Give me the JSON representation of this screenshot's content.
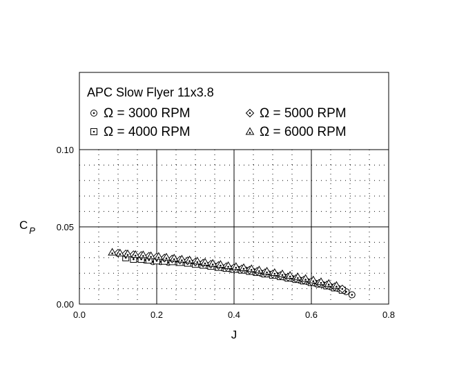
{
  "chart_data": {
    "type": "scatter",
    "title": "APC Slow Flyer 11x3.8",
    "xlabel": "J",
    "ylabel": "C",
    "ylabel_sub": "P",
    "xlim": [
      0.0,
      0.8
    ],
    "ylim": [
      0.0,
      0.125
    ],
    "x_ticks": [
      "0.0",
      "0.2",
      "0.4",
      "0.6",
      "0.8"
    ],
    "y_ticks": [
      "0.00",
      "0.05",
      "0.10"
    ],
    "grid": true,
    "legend_position": "top",
    "series": [
      {
        "name": "Ω = 3000 RPM",
        "marker": "circle-dot",
        "points": [
          [
            0.15,
            0.0295
          ],
          [
            0.17,
            0.0285
          ],
          [
            0.19,
            0.0275
          ],
          [
            0.21,
            0.0275
          ],
          [
            0.23,
            0.027
          ],
          [
            0.25,
            0.0275
          ],
          [
            0.27,
            0.027
          ],
          [
            0.29,
            0.0265
          ],
          [
            0.31,
            0.0258
          ],
          [
            0.33,
            0.025
          ],
          [
            0.35,
            0.0245
          ],
          [
            0.37,
            0.0235
          ],
          [
            0.39,
            0.0228
          ],
          [
            0.41,
            0.0225
          ],
          [
            0.43,
            0.022
          ],
          [
            0.45,
            0.021
          ],
          [
            0.47,
            0.02
          ],
          [
            0.49,
            0.0195
          ],
          [
            0.51,
            0.0185
          ],
          [
            0.53,
            0.0175
          ],
          [
            0.55,
            0.0165
          ],
          [
            0.57,
            0.0155
          ],
          [
            0.59,
            0.0145
          ],
          [
            0.61,
            0.0135
          ],
          [
            0.63,
            0.0125
          ],
          [
            0.65,
            0.0112
          ],
          [
            0.67,
            0.01
          ],
          [
            0.69,
            0.008
          ],
          [
            0.705,
            0.006
          ]
        ]
      },
      {
        "name": "Ω = 4000 RPM",
        "marker": "square-dot",
        "points": [
          [
            0.12,
            0.03
          ],
          [
            0.14,
            0.029
          ],
          [
            0.16,
            0.029
          ],
          [
            0.18,
            0.0285
          ],
          [
            0.2,
            0.028
          ],
          [
            0.22,
            0.0278
          ],
          [
            0.24,
            0.0275
          ],
          [
            0.26,
            0.027
          ],
          [
            0.28,
            0.0265
          ],
          [
            0.3,
            0.0258
          ],
          [
            0.32,
            0.0252
          ],
          [
            0.34,
            0.0245
          ],
          [
            0.36,
            0.0238
          ],
          [
            0.38,
            0.0232
          ],
          [
            0.4,
            0.0225
          ],
          [
            0.42,
            0.022
          ],
          [
            0.44,
            0.0212
          ],
          [
            0.46,
            0.0205
          ],
          [
            0.48,
            0.0195
          ],
          [
            0.5,
            0.0187
          ],
          [
            0.52,
            0.0178
          ],
          [
            0.54,
            0.0168
          ],
          [
            0.56,
            0.016
          ],
          [
            0.58,
            0.015
          ],
          [
            0.6,
            0.014
          ],
          [
            0.62,
            0.013
          ],
          [
            0.64,
            0.0118
          ],
          [
            0.66,
            0.0105
          ],
          [
            0.68,
            0.009
          ]
        ]
      },
      {
        "name": "Ω = 5000 RPM",
        "marker": "diamond-dot",
        "points": [
          [
            0.1,
            0.033
          ],
          [
            0.12,
            0.0325
          ],
          [
            0.14,
            0.032
          ],
          [
            0.16,
            0.0315
          ],
          [
            0.18,
            0.031
          ],
          [
            0.2,
            0.0305
          ],
          [
            0.22,
            0.0298
          ],
          [
            0.24,
            0.0292
          ],
          [
            0.26,
            0.0285
          ],
          [
            0.28,
            0.028
          ],
          [
            0.3,
            0.0272
          ],
          [
            0.32,
            0.0265
          ],
          [
            0.34,
            0.0258
          ],
          [
            0.36,
            0.025
          ],
          [
            0.38,
            0.0242
          ],
          [
            0.4,
            0.0235
          ],
          [
            0.42,
            0.0228
          ],
          [
            0.44,
            0.022
          ],
          [
            0.46,
            0.0212
          ],
          [
            0.48,
            0.0203
          ],
          [
            0.5,
            0.0195
          ],
          [
            0.52,
            0.0185
          ],
          [
            0.54,
            0.0175
          ],
          [
            0.56,
            0.0165
          ],
          [
            0.58,
            0.0155
          ],
          [
            0.6,
            0.0145
          ],
          [
            0.62,
            0.0135
          ],
          [
            0.64,
            0.0124
          ],
          [
            0.66,
            0.0112
          ],
          [
            0.68,
            0.0098
          ]
        ]
      },
      {
        "name": "Ω = 6000 RPM",
        "marker": "triangle-dot",
        "points": [
          [
            0.085,
            0.0335
          ],
          [
            0.105,
            0.033
          ],
          [
            0.125,
            0.0325
          ],
          [
            0.145,
            0.032
          ],
          [
            0.165,
            0.0318
          ],
          [
            0.185,
            0.0312
          ],
          [
            0.205,
            0.0308
          ],
          [
            0.225,
            0.0303
          ],
          [
            0.245,
            0.0297
          ],
          [
            0.265,
            0.029
          ],
          [
            0.285,
            0.0285
          ],
          [
            0.305,
            0.0278
          ],
          [
            0.325,
            0.027
          ],
          [
            0.345,
            0.0263
          ],
          [
            0.365,
            0.0256
          ],
          [
            0.385,
            0.0248
          ],
          [
            0.405,
            0.0242
          ],
          [
            0.425,
            0.0235
          ],
          [
            0.445,
            0.0228
          ],
          [
            0.465,
            0.022
          ],
          [
            0.485,
            0.0212
          ],
          [
            0.505,
            0.0203
          ],
          [
            0.525,
            0.0195
          ],
          [
            0.545,
            0.0185
          ],
          [
            0.565,
            0.0175
          ],
          [
            0.585,
            0.0165
          ],
          [
            0.605,
            0.0155
          ],
          [
            0.625,
            0.0144
          ],
          [
            0.645,
            0.0133
          ],
          [
            0.665,
            0.012
          ]
        ]
      }
    ]
  }
}
